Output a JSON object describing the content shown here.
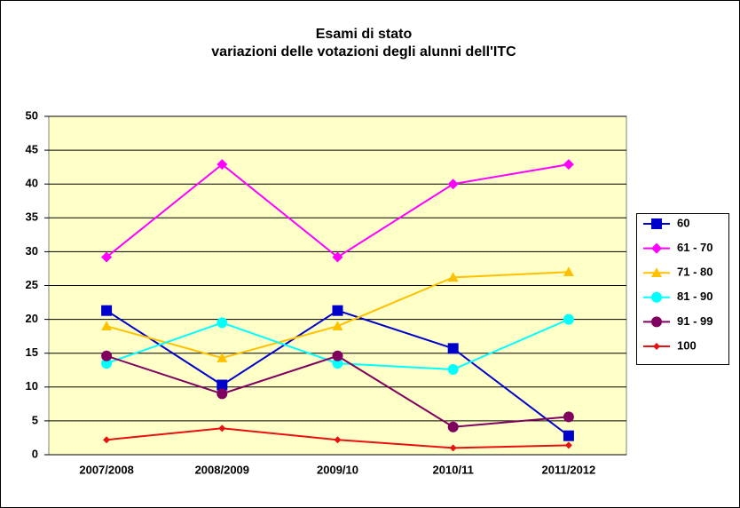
{
  "chart_data": {
    "type": "line",
    "title": "Esami di stato",
    "subtitle": "variazioni delle votazioni degli alunni dell'ITC",
    "categories": [
      "2007/2008",
      "2008/2009",
      "2009/10",
      "2010/11",
      "2011/2012"
    ],
    "series": [
      {
        "name": "60",
        "color": "#0000cc",
        "marker": "square",
        "values": [
          21.3,
          10.3,
          21.3,
          15.7,
          2.8
        ]
      },
      {
        "name": "61 - 70",
        "color": "#ff00ff",
        "marker": "diamond",
        "values": [
          29.2,
          42.9,
          29.2,
          40,
          42.9
        ]
      },
      {
        "name": "71 - 80",
        "color": "#ffc000",
        "marker": "triangle",
        "values": [
          19,
          14.3,
          19,
          26.2,
          27
        ]
      },
      {
        "name": "81 - 90",
        "color": "#00ffff",
        "marker": "circle",
        "values": [
          13.5,
          19.5,
          13.5,
          12.6,
          20
        ]
      },
      {
        "name": "91 - 99",
        "color": "#800060",
        "marker": "circle",
        "values": [
          14.6,
          9,
          14.6,
          4.1,
          5.6
        ]
      },
      {
        "name": "100",
        "color": "#e81010",
        "marker": "diamond",
        "values": [
          2.2,
          3.9,
          2.2,
          1,
          1.4
        ]
      }
    ],
    "ylim": [
      0,
      50
    ],
    "yticks": [
      0,
      5,
      10,
      15,
      20,
      25,
      30,
      35,
      40,
      45,
      50
    ],
    "grid": true,
    "legend": "right"
  }
}
